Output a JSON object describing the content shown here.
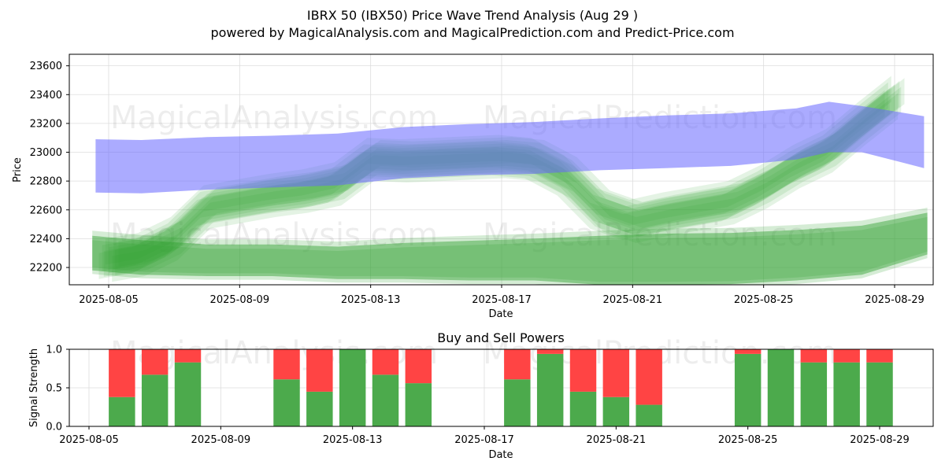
{
  "title_line1": "IBRX 50 (IBX50) Price Wave Trend Analysis (Aug 29 )",
  "title_line2": "powered by MagicalAnalysis.com and MagicalPrediction.com and Predict-Price.com",
  "watermarks": [
    "MagicalAnalysis.com",
    "MagicalPrediction.com"
  ],
  "colors": {
    "blue_band": "#6666ff",
    "green_band": "#2ca02c",
    "buy": "#4caa4c",
    "sell": "#ff4444"
  },
  "chart_data": [
    {
      "type": "area",
      "xlabel": "Date",
      "ylabel": "Price",
      "ylim": [
        22080,
        23680
      ],
      "y_ticks": [
        22200,
        22400,
        22600,
        22800,
        23000,
        23200,
        23400,
        23600
      ],
      "x_ticks": [
        "2025-08-05",
        "2025-08-09",
        "2025-08-13",
        "2025-08-17",
        "2025-08-21",
        "2025-08-25",
        "2025-08-29"
      ],
      "grid": true,
      "blue_band": {
        "x": [
          "2025-08-04.6",
          "2025-08-06",
          "2025-08-08",
          "2025-08-10",
          "2025-08-12",
          "2025-08-14",
          "2025-08-16",
          "2025-08-18",
          "2025-08-20",
          "2025-08-22",
          "2025-08-24",
          "2025-08-26",
          "2025-08-27",
          "2025-08-28",
          "2025-08-29.9"
        ],
        "upper": [
          23090,
          23085,
          23105,
          23115,
          23130,
          23175,
          23195,
          23210,
          23235,
          23255,
          23270,
          23305,
          23350,
          23320,
          23250
        ],
        "lower": [
          22720,
          22715,
          22740,
          22755,
          22770,
          22820,
          22840,
          22850,
          22875,
          22890,
          22905,
          22950,
          23000,
          23000,
          22890
        ]
      },
      "green_wave": {
        "x": [
          "2025-08-05",
          "2025-08-06",
          "2025-08-07",
          "2025-08-08",
          "2025-08-09",
          "2025-08-10",
          "2025-08-11",
          "2025-08-12",
          "2025-08-13",
          "2025-08-14",
          "2025-08-15",
          "2025-08-16",
          "2025-08-17",
          "2025-08-18",
          "2025-08-19",
          "2025-08-20",
          "2025-08-21",
          "2025-08-22",
          "2025-08-23",
          "2025-08-24",
          "2025-08-25",
          "2025-08-26",
          "2025-08-27",
          "2025-08-28",
          "2025-08-29"
        ],
        "center": [
          22250,
          22290,
          22400,
          22620,
          22660,
          22700,
          22730,
          22780,
          22950,
          22940,
          22950,
          22960,
          22970,
          22950,
          22830,
          22600,
          22520,
          22570,
          22610,
          22650,
          22760,
          22900,
          23010,
          23200,
          23380
        ],
        "half_width": 90
      },
      "green_band": {
        "x": [
          "2025-08-04.5",
          "2025-08-06",
          "2025-08-08",
          "2025-08-10",
          "2025-08-12",
          "2025-08-14",
          "2025-08-16",
          "2025-08-18",
          "2025-08-20",
          "2025-08-22",
          "2025-08-24",
          "2025-08-26",
          "2025-08-28",
          "2025-08-30"
        ],
        "upper": [
          22420,
          22390,
          22360,
          22360,
          22345,
          22370,
          22385,
          22400,
          22420,
          22435,
          22440,
          22460,
          22490,
          22580
        ],
        "lower": [
          22180,
          22150,
          22140,
          22140,
          22120,
          22120,
          22110,
          22110,
          22080,
          22080,
          22085,
          22110,
          22150,
          22290
        ]
      }
    },
    {
      "type": "bar",
      "title": "Buy and Sell Powers",
      "xlabel": "Date",
      "ylabel": "Signal Strength",
      "ylim": [
        0,
        1
      ],
      "y_ticks": [
        "0.0",
        "0.5",
        "1.0"
      ],
      "x_ticks": [
        "2025-08-05",
        "2025-08-09",
        "2025-08-13",
        "2025-08-17",
        "2025-08-21",
        "2025-08-25",
        "2025-08-29"
      ],
      "categories": [
        "2025-08-06",
        "2025-08-07",
        "2025-08-08",
        "2025-08-11",
        "2025-08-12",
        "2025-08-13",
        "2025-08-14",
        "2025-08-15",
        "2025-08-18",
        "2025-08-19",
        "2025-08-20",
        "2025-08-21",
        "2025-08-22",
        "2025-08-25",
        "2025-08-26",
        "2025-08-27",
        "2025-08-28",
        "2025-08-29"
      ],
      "series": [
        {
          "name": "buy",
          "values": [
            0.38,
            0.67,
            0.83,
            0.61,
            0.45,
            1.0,
            0.67,
            0.56,
            0.61,
            0.94,
            0.45,
            0.38,
            0.28,
            0.94,
            1.0,
            0.83,
            0.83,
            0.83
          ]
        },
        {
          "name": "sell",
          "values": [
            0.62,
            0.33,
            0.17,
            0.39,
            0.55,
            0.0,
            0.33,
            0.44,
            0.39,
            0.06,
            0.55,
            0.62,
            0.72,
            0.06,
            0.0,
            0.17,
            0.17,
            0.17
          ]
        }
      ]
    }
  ]
}
